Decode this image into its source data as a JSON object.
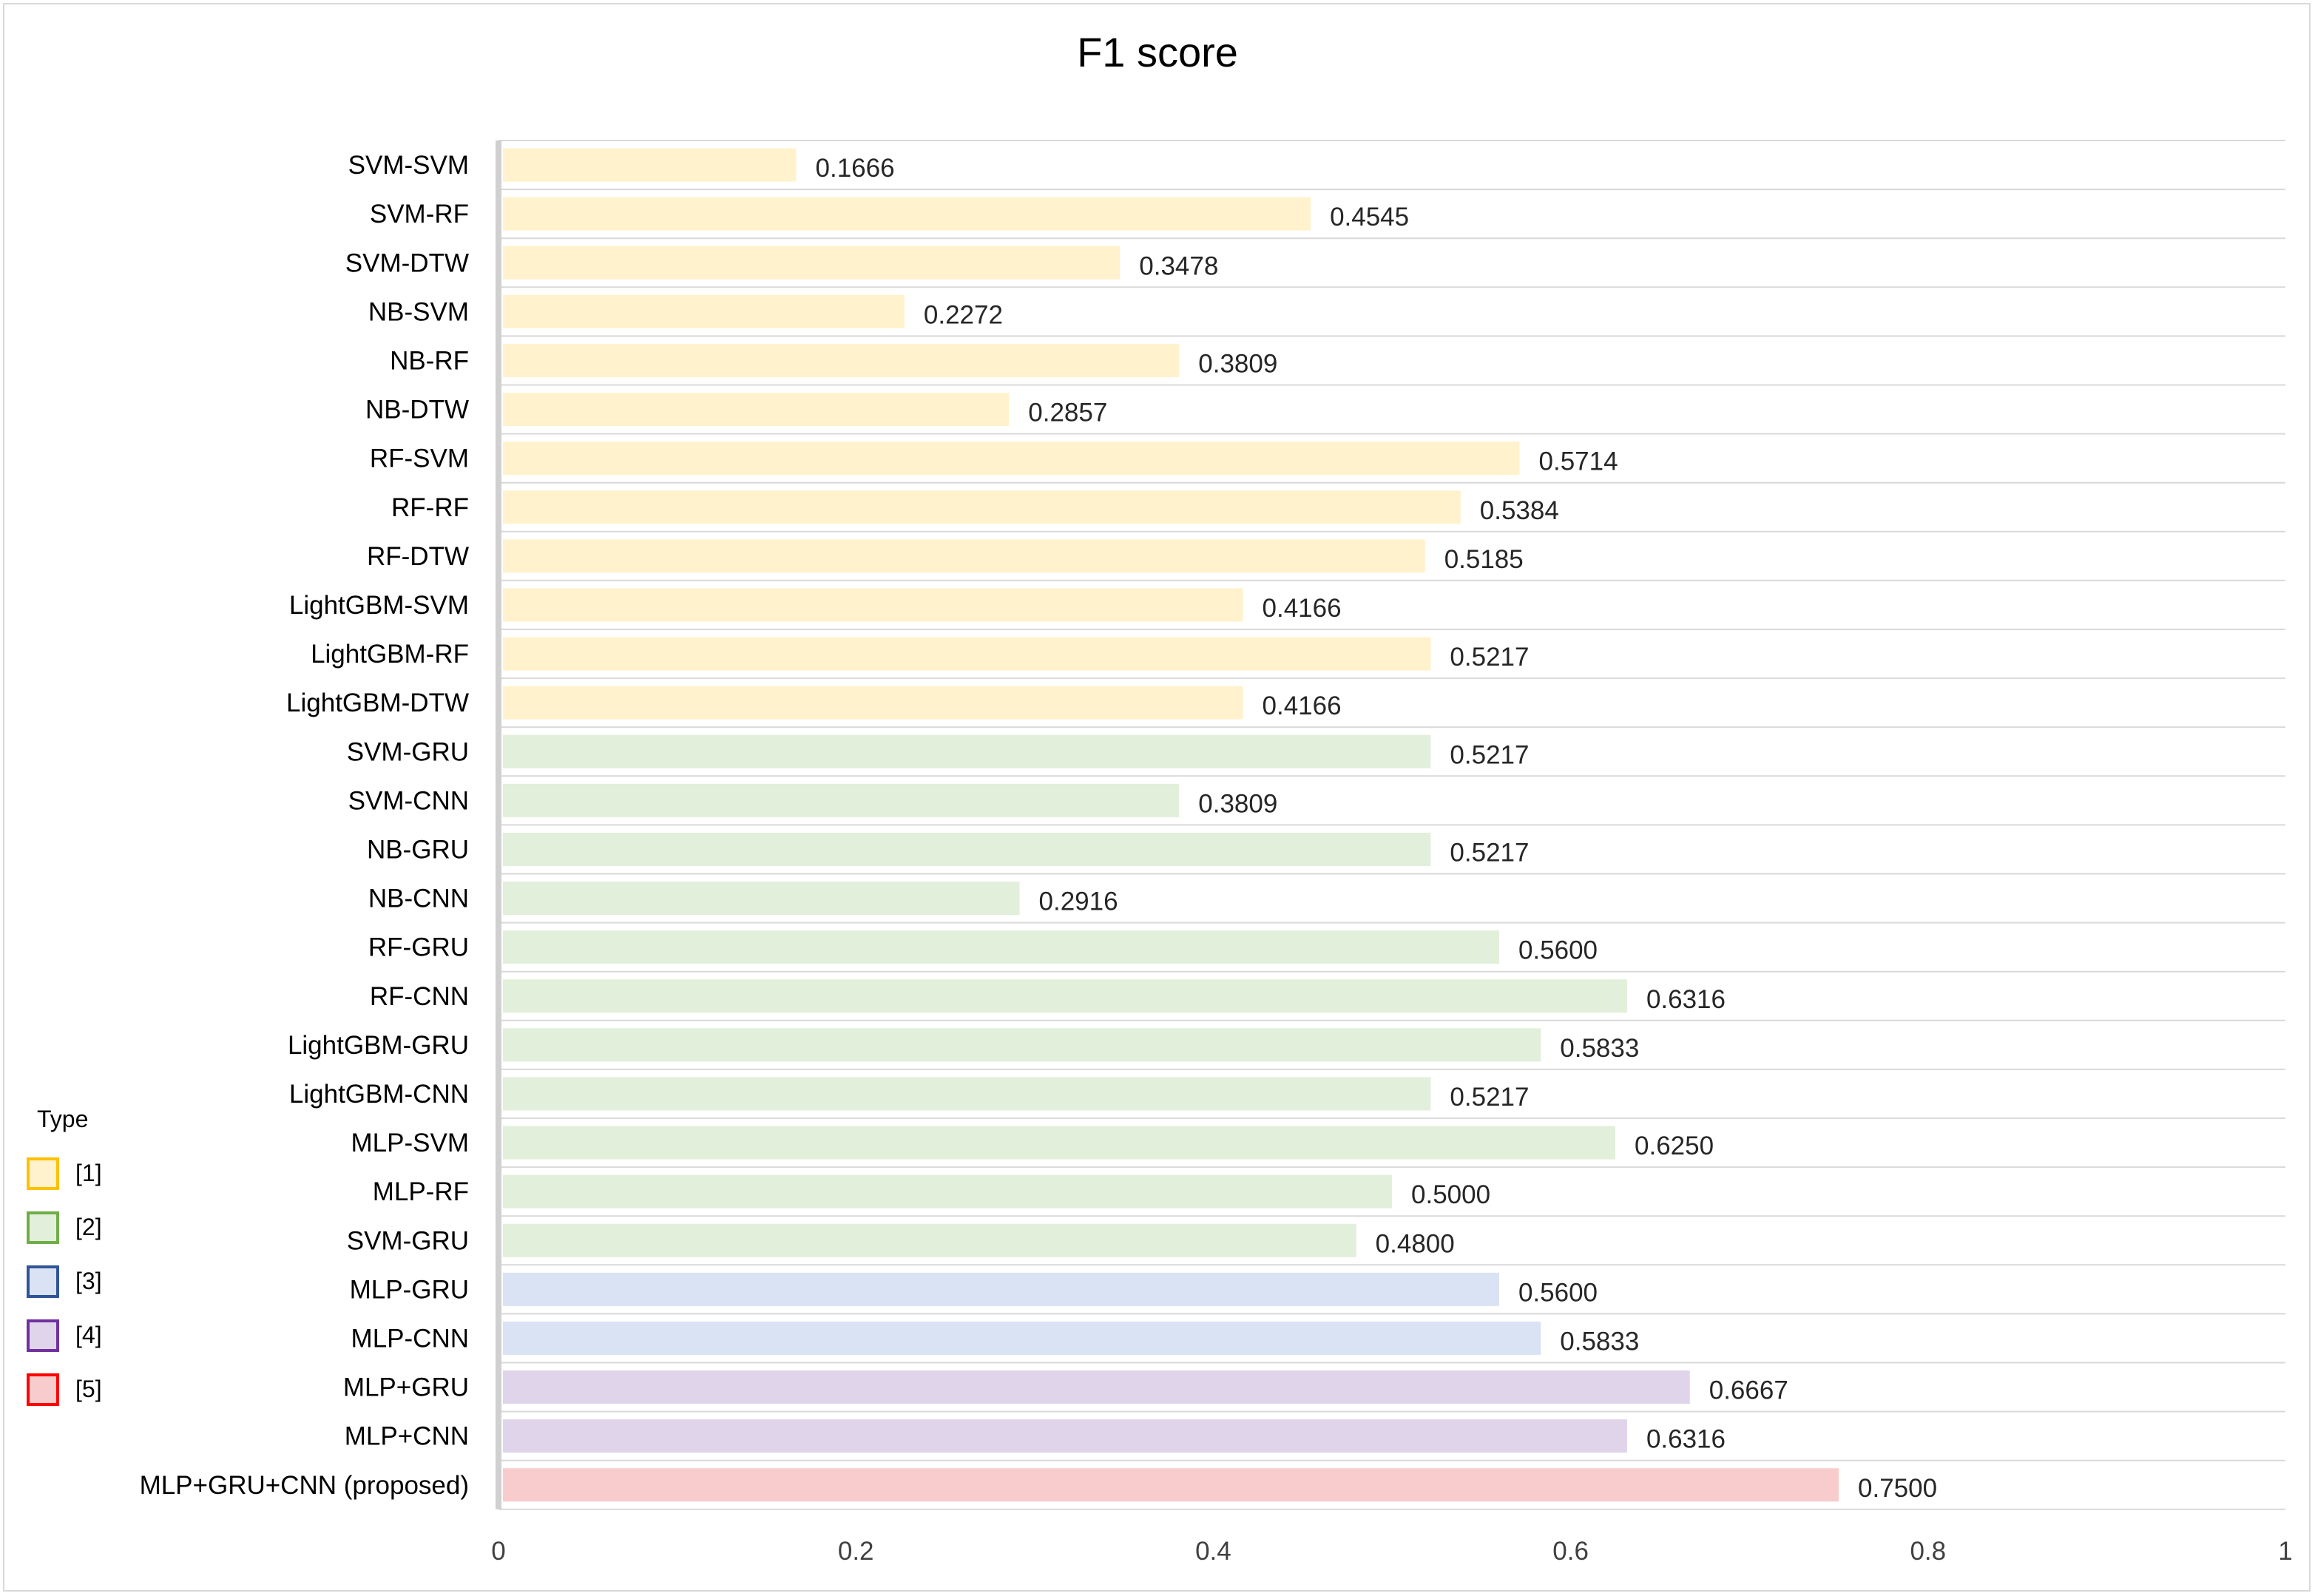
{
  "chart_data": {
    "type": "bar",
    "orientation": "horizontal",
    "title": "F1 score",
    "xlim": [
      0,
      1
    ],
    "xticks": [
      "0",
      "0.2",
      "0.4",
      "0.6",
      "0.8",
      "1"
    ],
    "grid": true,
    "categories": [
      "SVM-SVM",
      "SVM-RF",
      "SVM-DTW",
      "NB-SVM",
      "NB-RF",
      "NB-DTW",
      "RF-SVM",
      "RF-RF",
      "RF-DTW",
      "LightGBM-SVM",
      "LightGBM-RF",
      "LightGBM-DTW",
      "SVM-GRU",
      "SVM-CNN",
      "NB-GRU",
      "NB-CNN",
      "RF-GRU",
      "RF-CNN",
      "LightGBM-GRU",
      "LightGBM-CNN",
      "MLP-SVM",
      "MLP-RF",
      "SVM-GRU",
      "MLP-GRU",
      "MLP-CNN",
      "MLP+GRU",
      "MLP+CNN",
      "MLP+GRU+CNN (proposed)"
    ],
    "values": [
      0.1666,
      0.4545,
      0.3478,
      0.2272,
      0.3809,
      0.2857,
      0.5714,
      0.5384,
      0.5185,
      0.4166,
      0.5217,
      0.4166,
      0.5217,
      0.3809,
      0.5217,
      0.2916,
      0.56,
      0.6316,
      0.5833,
      0.5217,
      0.625,
      0.5,
      0.48,
      0.56,
      0.5833,
      0.6667,
      0.6316,
      0.75
    ],
    "value_labels": [
      "0.1666",
      "0.4545",
      "0.3478",
      "0.2272",
      "0.3809",
      "0.2857",
      "0.5714",
      "0.5384",
      "0.5185",
      "0.4166",
      "0.5217",
      "0.4166",
      "0.5217",
      "0.3809",
      "0.5217",
      "0.2916",
      "0.5600",
      "0.6316",
      "0.5833",
      "0.5217",
      "0.6250",
      "0.5000",
      "0.4800",
      "0.5600",
      "0.5833",
      "0.6667",
      "0.6316",
      "0.7500"
    ],
    "types": [
      0,
      0,
      0,
      0,
      0,
      0,
      0,
      0,
      0,
      0,
      0,
      0,
      1,
      1,
      1,
      1,
      1,
      1,
      1,
      1,
      1,
      1,
      1,
      2,
      2,
      3,
      3,
      4
    ],
    "legend": {
      "title": "Type",
      "placement": "bottom-left",
      "items": [
        {
          "label": "[1]",
          "fill": "#fff2cc",
          "border": "#ffc000"
        },
        {
          "label": "[2]",
          "fill": "#e2efda",
          "border": "#70ad47"
        },
        {
          "label": "[3]",
          "fill": "#dae3f3",
          "border": "#2f5597"
        },
        {
          "label": "[4]",
          "fill": "#e0d4eb",
          "border": "#7030a0"
        },
        {
          "label": "[5]",
          "fill": "#f8cbcc",
          "border": "#ff0000"
        }
      ]
    }
  }
}
